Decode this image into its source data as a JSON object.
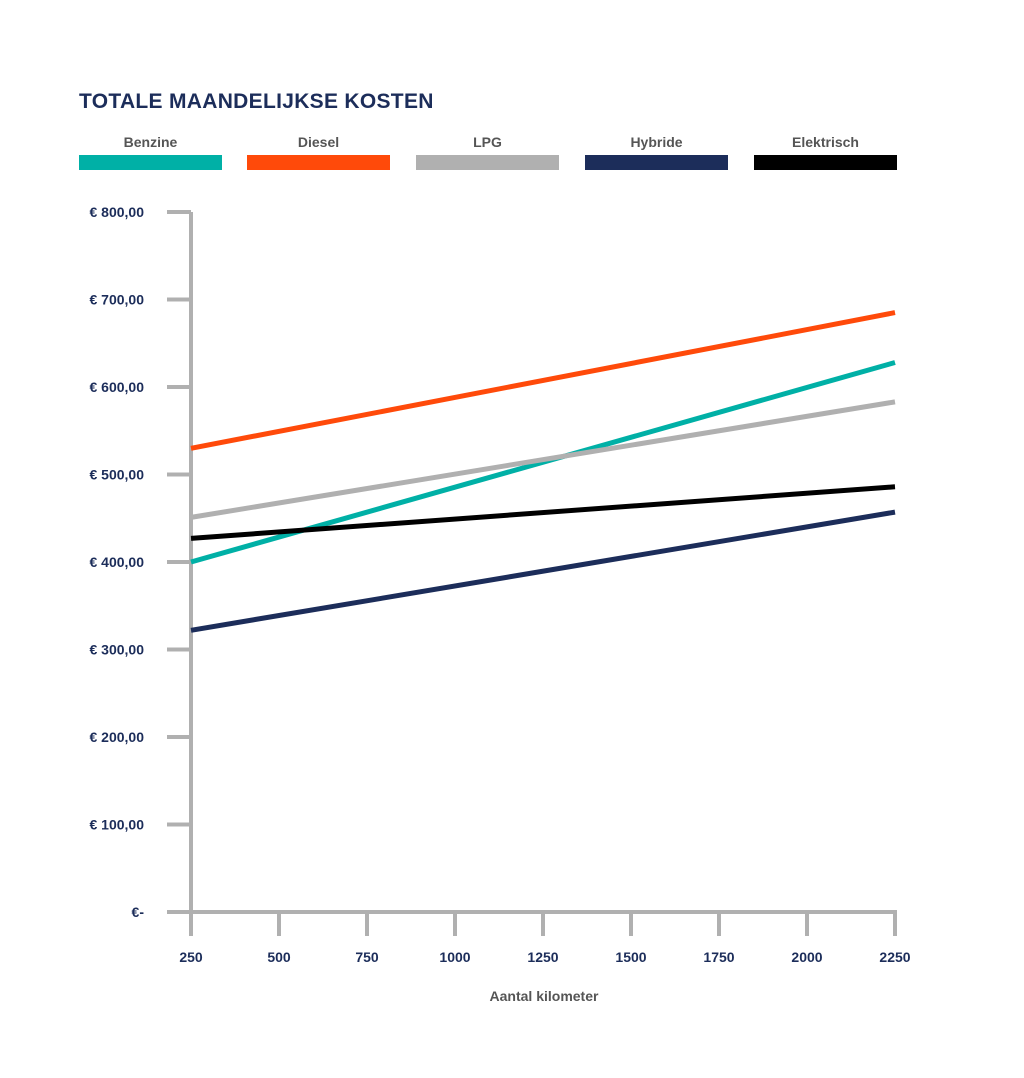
{
  "chart_data": {
    "type": "line",
    "title": "TOTALE MAANDELIJKSE KOSTEN",
    "xlabel": "Aantal kilometer",
    "ylabel": "",
    "x": [
      250,
      2250
    ],
    "x_ticks": [
      "250",
      "500",
      "750",
      "1000",
      "1250",
      "1500",
      "1750",
      "2000",
      "2250"
    ],
    "y_ticks": [
      "€-",
      "€ 100,00",
      "€ 200,00",
      "€ 300,00",
      "€ 400,00",
      "€ 500,00",
      "€ 600,00",
      "€ 700,00",
      "€ 800,00"
    ],
    "xlim": [
      250,
      2250
    ],
    "ylim": [
      0,
      800
    ],
    "grid": false,
    "legend_position": "top",
    "series": [
      {
        "name": "Benzine",
        "color": "#00b0a6",
        "values": [
          400,
          628
        ]
      },
      {
        "name": "Diesel",
        "color": "#ff4a0a",
        "values": [
          530,
          685
        ]
      },
      {
        "name": "LPG",
        "color": "#b0b0b0",
        "values": [
          451,
          583
        ]
      },
      {
        "name": "Hybride",
        "color": "#1c2d5a",
        "values": [
          322,
          457
        ]
      },
      {
        "name": "Elektrisch",
        "color": "#000000",
        "values": [
          427,
          486
        ]
      }
    ],
    "axis_color": "#b0b0b0"
  }
}
